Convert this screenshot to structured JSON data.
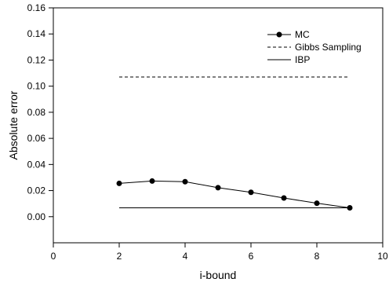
{
  "chart_data": {
    "type": "line",
    "xlabel": "i-bound",
    "ylabel": "Absolute error",
    "xlim": [
      0,
      10
    ],
    "ylim": [
      -0.02,
      0.16
    ],
    "xticks": [
      0,
      2,
      4,
      6,
      8,
      10
    ],
    "yticks": [
      0.0,
      0.02,
      0.04,
      0.06,
      0.08,
      0.1,
      0.12,
      0.14,
      0.16
    ],
    "ytick_labels": [
      "0.00",
      "0.02",
      "0.04",
      "0.06",
      "0.08",
      "0.10",
      "0.12",
      "0.14",
      "0.16"
    ],
    "xtick_labels": [
      "0",
      "2",
      "4",
      "6",
      "8",
      "10"
    ],
    "grid": false,
    "legend_position": "top-right",
    "series": [
      {
        "name": "MC",
        "style": "solid-markers",
        "color": "#000000",
        "x": [
          2,
          3,
          4,
          5,
          6,
          7,
          8,
          9
        ],
        "y": [
          0.0255,
          0.0273,
          0.0268,
          0.0222,
          0.0187,
          0.0143,
          0.0103,
          0.0068
        ]
      },
      {
        "name": "Gibbs Sampling",
        "style": "dashed",
        "color": "#000000",
        "x": [
          2,
          9
        ],
        "y": [
          0.107,
          0.107
        ]
      },
      {
        "name": "IBP",
        "style": "solid",
        "color": "#000000",
        "x": [
          2,
          9
        ],
        "y": [
          0.0068,
          0.0068
        ]
      }
    ]
  }
}
